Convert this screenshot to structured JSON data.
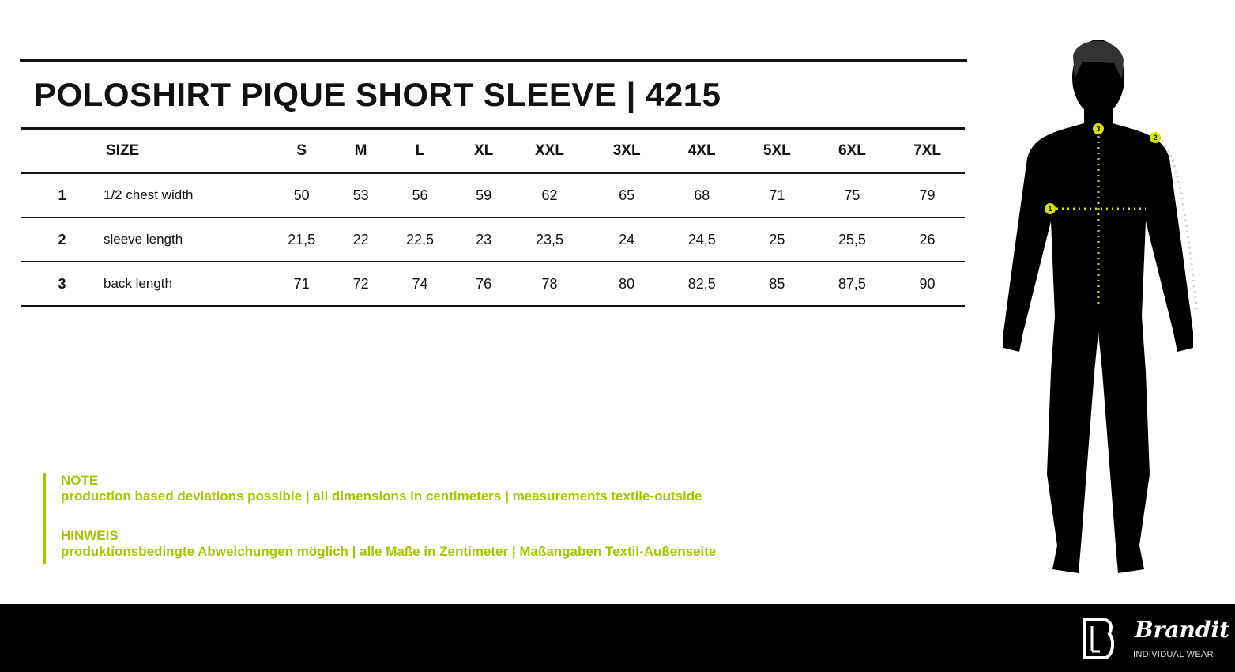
{
  "title": "POLOSHIRT PIQUE SHORT SLEEVE | 4215",
  "table": {
    "size_header": "SIZE",
    "sizes": [
      "S",
      "M",
      "L",
      "XL",
      "XXL",
      "3XL",
      "4XL",
      "5XL",
      "6XL",
      "7XL"
    ],
    "rows": [
      {
        "num": "1",
        "label": "1/2 chest width",
        "values": [
          "50",
          "53",
          "56",
          "59",
          "62",
          "65",
          "68",
          "71",
          "75",
          "79"
        ]
      },
      {
        "num": "2",
        "label": "sleeve length",
        "values": [
          "21,5",
          "22",
          "22,5",
          "23",
          "23,5",
          "24",
          "24,5",
          "25",
          "25,5",
          "26"
        ]
      },
      {
        "num": "3",
        "label": "back length",
        "values": [
          "71",
          "72",
          "74",
          "76",
          "78",
          "80",
          "82,5",
          "85",
          "87,5",
          "90"
        ]
      }
    ]
  },
  "note": {
    "en_heading": "NOTE",
    "en_text": "production based deviations possible | all dimensions in centimeters | measurements textile-outside",
    "de_heading": "HINWEIS",
    "de_text": "produktionsbedingte Abweichungen möglich | alle Maße in Zentimeter | Maßangaben Textil-Außenseite"
  },
  "figure": {
    "markers": [
      "1",
      "2",
      "3"
    ],
    "accent": "#d4e600"
  },
  "footer": {
    "brand": "Brandit",
    "tagline": "INDIVIDUAL WEAR"
  },
  "colors": {
    "accent": "#a8c400",
    "text": "#111111",
    "footer": "#000000"
  }
}
